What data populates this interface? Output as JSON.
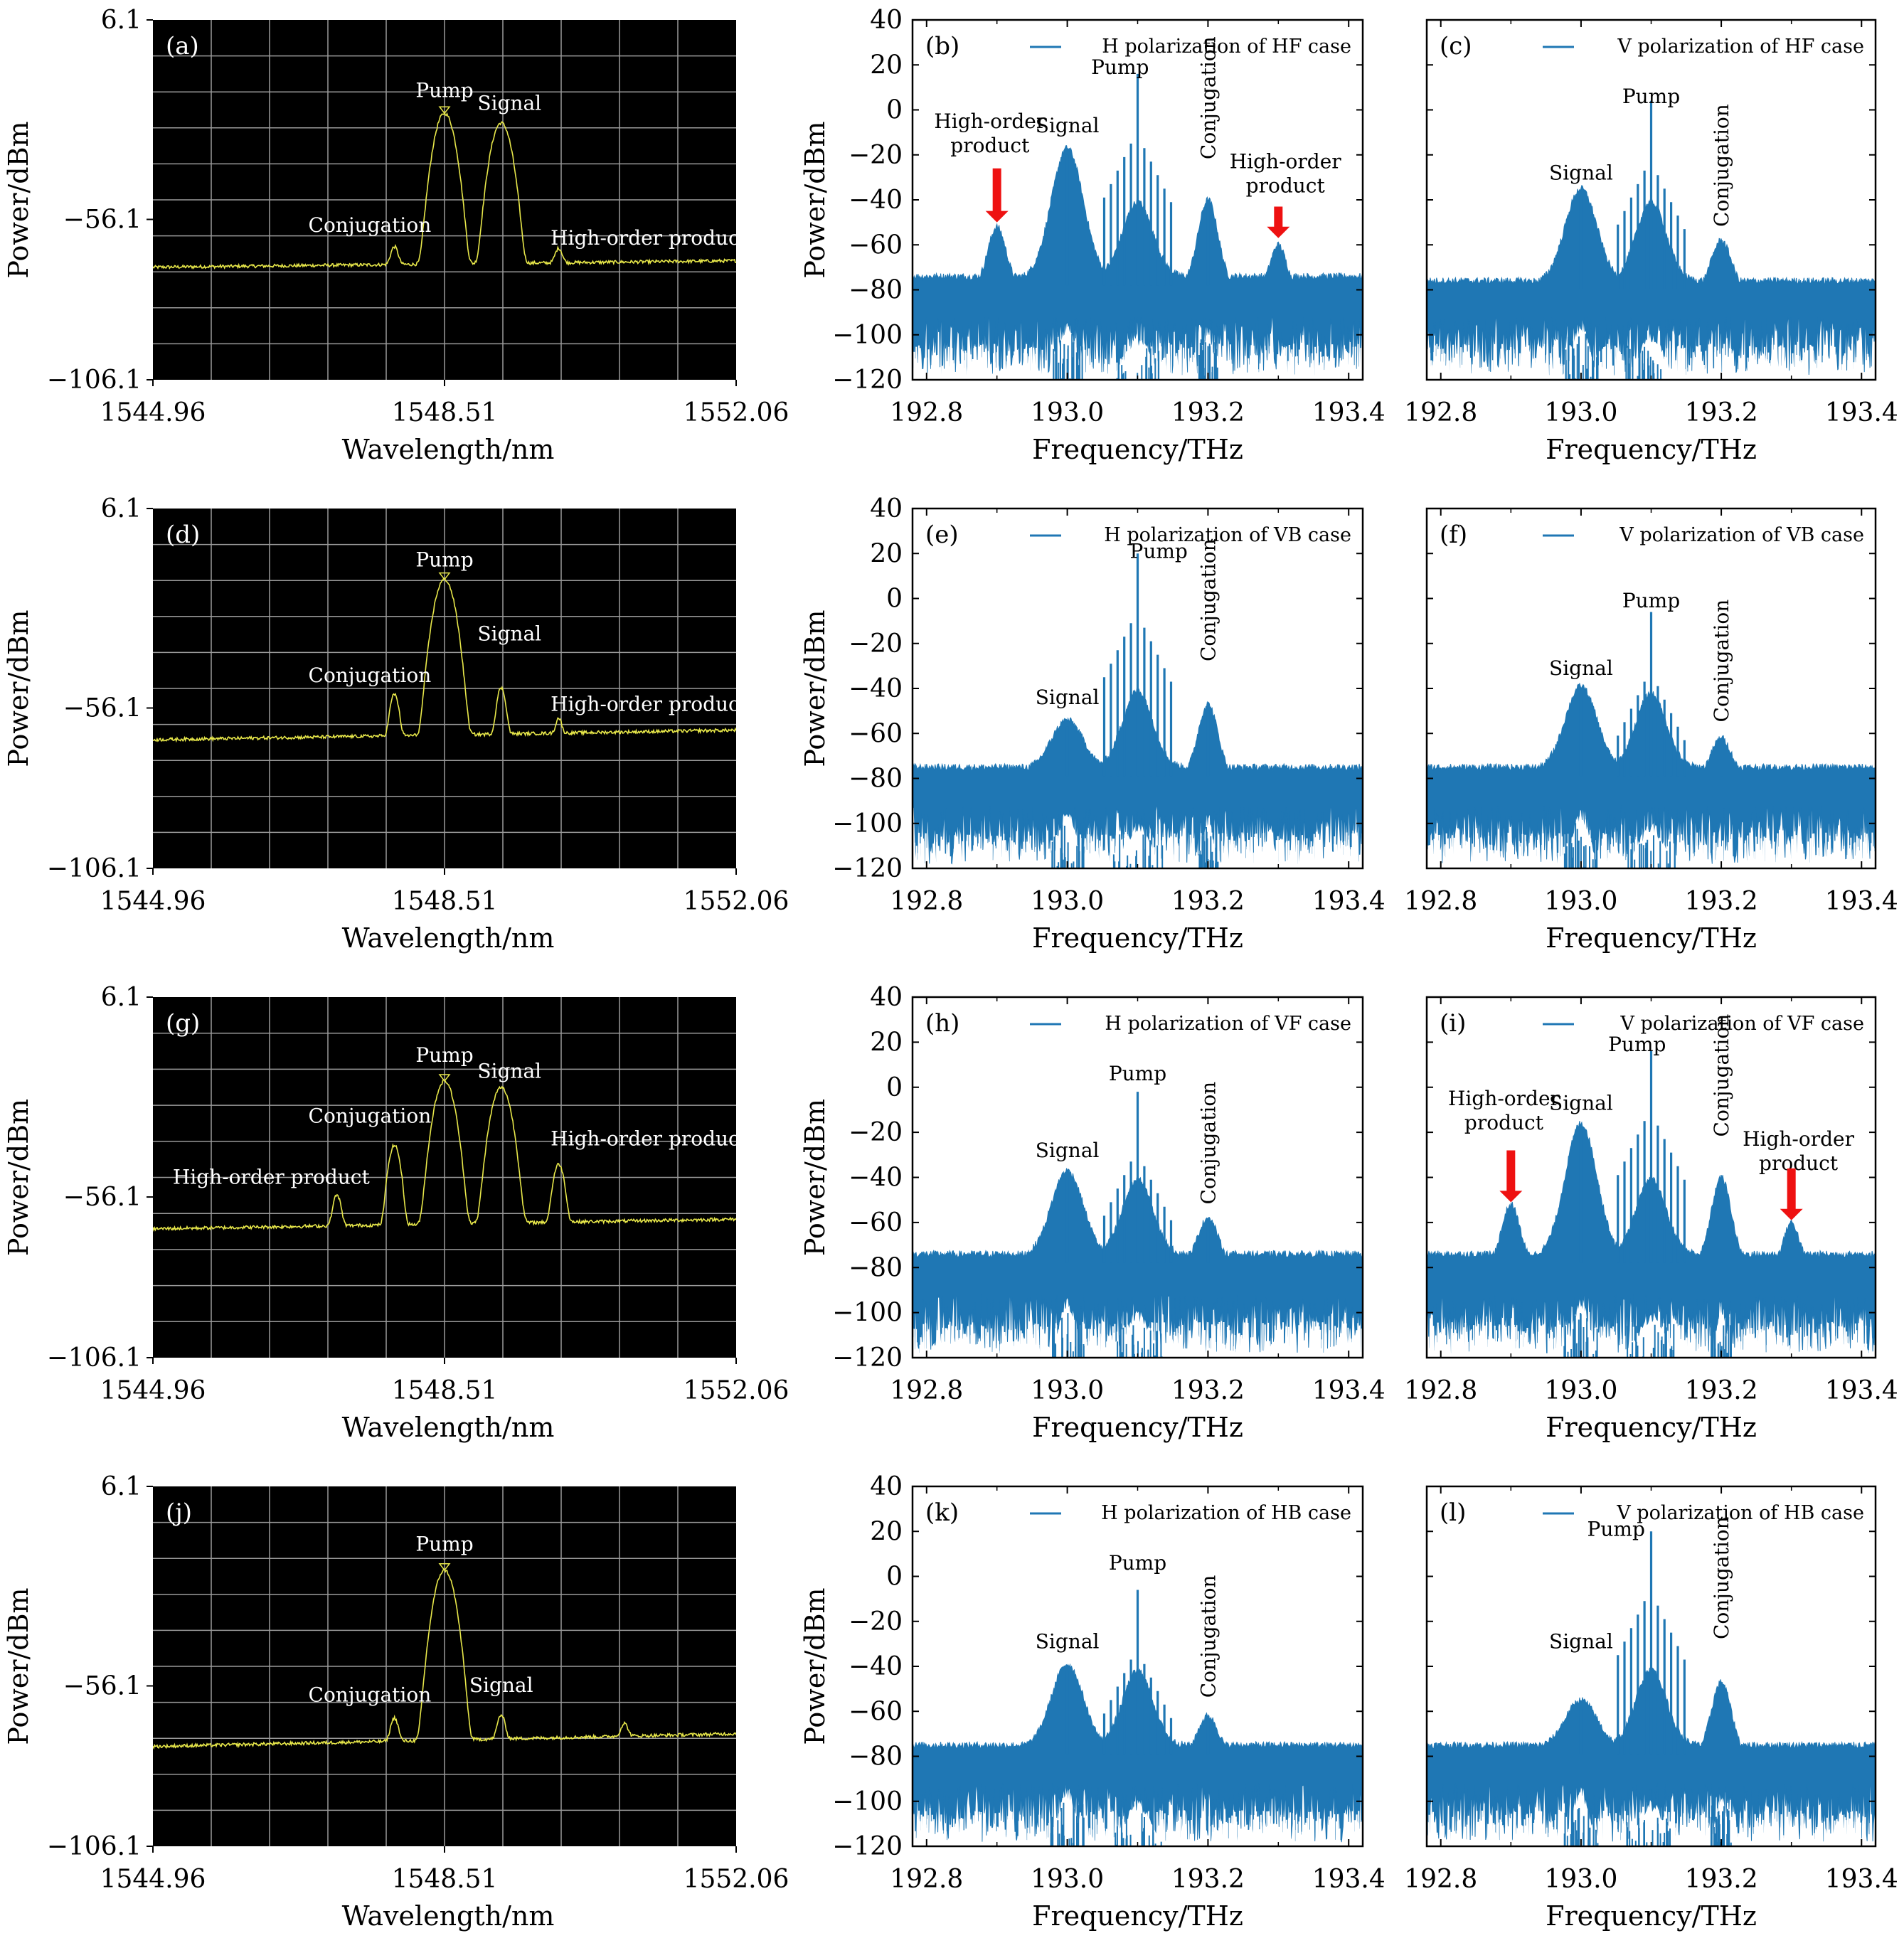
{
  "colors": {
    "spectrum": "#1f77b4",
    "osa_background": "#000000",
    "osa_grid": "#9a9a9a",
    "osa_trace": "#e8e84a",
    "osa_text": "#ffffff",
    "arrow": "#ee1111"
  },
  "chart_data": [
    {
      "id": "a",
      "label": "(a)",
      "type": "line",
      "style": "osa",
      "xlabel": "Wavelength/nm",
      "ylabel": "Power/dBm",
      "xlim": [
        1544.96,
        1552.06
      ],
      "ylim": [
        -106.1,
        6.1
      ],
      "xticks": [
        1544.96,
        1548.51,
        1552.06
      ],
      "xtick_labels": [
        "1544.96",
        "1548.51",
        "1552.06"
      ],
      "yticks": [
        6.1,
        -56.1,
        -106.1
      ],
      "ytick_labels": [
        "6.1",
        "−56.1",
        "−106.1"
      ],
      "baseline": [
        -71,
        -69
      ],
      "peaks": [
        {
          "x": 1547.9,
          "y": -66,
          "w": 0.05
        },
        {
          "x": 1548.51,
          "y": -23,
          "w": 0.09
        },
        {
          "x": 1549.2,
          "y": -26,
          "w": 0.09
        },
        {
          "x": 1549.9,
          "y": -67,
          "w": 0.05
        }
      ],
      "annotations": [
        {
          "text": "Pump",
          "x": 1548.51,
          "y": -18
        },
        {
          "text": "Signal",
          "x": 1549.3,
          "y": -22
        },
        {
          "text": "Conjugation",
          "x": 1547.6,
          "y": -60
        },
        {
          "text": "High-order product",
          "x": 1551.0,
          "y": -64
        }
      ]
    },
    {
      "id": "b",
      "label": "(b)",
      "type": "line",
      "style": "spectrum",
      "legend": "H polarization of HF case",
      "xlabel": "Frequency/THz",
      "ylabel": "Power/dBm",
      "xlim": [
        192.78,
        193.42
      ],
      "ylim": [
        -120,
        40
      ],
      "xticks": [
        192.8,
        193.0,
        193.2,
        193.4
      ],
      "xtick_labels": [
        "192.8",
        "193.0",
        "193.2",
        "193.4"
      ],
      "yticks": [
        40,
        20,
        0,
        -20,
        -40,
        -60,
        -80,
        -100,
        -120
      ],
      "ytick_labels": [
        "40",
        "20",
        "0",
        "−20",
        "−40",
        "−60",
        "−80",
        "−100",
        "−120"
      ],
      "baseline": -78,
      "pump_peak": 16,
      "signal_peak": -20,
      "conjugation_peak": -40,
      "ho_left_peak": -52,
      "ho_right_peak": -60,
      "annotations": [
        {
          "text": "Pump",
          "x": 193.075,
          "y": 16
        },
        {
          "text": "Signal",
          "x": 193.0,
          "y": -10
        },
        {
          "text": "Conjugation",
          "x": 193.2,
          "y": -22,
          "rotate": true
        },
        {
          "text": "High-order\nproduct",
          "x": 192.89,
          "y": -8
        },
        {
          "text": "High-order\nproduct",
          "x": 193.31,
          "y": -26
        }
      ],
      "arrows": [
        {
          "x": 192.9,
          "y_from": -26,
          "y_to": -50
        },
        {
          "x": 193.3,
          "y_from": -43,
          "y_to": -57
        }
      ]
    },
    {
      "id": "c",
      "label": "(c)",
      "type": "line",
      "style": "spectrum",
      "legend": "V polarization of HF case",
      "xlabel": "Frequency/THz",
      "ylabel": "",
      "xlim": [
        192.78,
        193.42
      ],
      "ylim": [
        -120,
        40
      ],
      "xticks": [
        192.8,
        193.0,
        193.2,
        193.4
      ],
      "xtick_labels": [
        "192.8",
        "193.0",
        "193.2",
        "193.4"
      ],
      "yticks": [
        40,
        20,
        0,
        -20,
        -40,
        -60,
        -80,
        -100,
        -120
      ],
      "baseline": -80,
      "pump_peak": 4,
      "signal_peak": -38,
      "conjugation_peak": -58,
      "annotations": [
        {
          "text": "Pump",
          "x": 193.1,
          "y": 3
        },
        {
          "text": "Signal",
          "x": 193.0,
          "y": -31
        },
        {
          "text": "Conjugation",
          "x": 193.2,
          "y": -52,
          "rotate": true
        }
      ]
    },
    {
      "id": "d",
      "label": "(d)",
      "type": "line",
      "style": "osa",
      "xlabel": "Wavelength/nm",
      "ylabel": "Power/dBm",
      "xlim": [
        1544.96,
        1552.06
      ],
      "ylim": [
        -106.1,
        6.1
      ],
      "xticks": [
        1544.96,
        1548.51,
        1552.06
      ],
      "xtick_labels": [
        "1544.96",
        "1548.51",
        "1552.06"
      ],
      "yticks": [
        6.1,
        -56.1,
        -106.1
      ],
      "ytick_labels": [
        "6.1",
        "−56.1",
        "−106.1"
      ],
      "baseline": [
        -66,
        -63
      ],
      "peaks": [
        {
          "x": 1547.9,
          "y": -52,
          "w": 0.05
        },
        {
          "x": 1548.51,
          "y": -16,
          "w": 0.09
        },
        {
          "x": 1549.2,
          "y": -50,
          "w": 0.05
        },
        {
          "x": 1549.9,
          "y": -61,
          "w": 0.04
        }
      ],
      "annotations": [
        {
          "text": "Pump",
          "x": 1548.51,
          "y": -12
        },
        {
          "text": "Signal",
          "x": 1549.3,
          "y": -35
        },
        {
          "text": "Conjugation",
          "x": 1547.6,
          "y": -48
        },
        {
          "text": "High-order product",
          "x": 1551.0,
          "y": -57
        }
      ]
    },
    {
      "id": "e",
      "label": "(e)",
      "type": "line",
      "style": "spectrum",
      "legend": "H polarization of VB case",
      "xlabel": "Frequency/THz",
      "ylabel": "Power/dBm",
      "xlim": [
        192.78,
        193.42
      ],
      "ylim": [
        -120,
        40
      ],
      "xticks": [
        192.8,
        193.0,
        193.2,
        193.4
      ],
      "xtick_labels": [
        "192.8",
        "193.0",
        "193.2",
        "193.4"
      ],
      "yticks": [
        40,
        20,
        0,
        -20,
        -40,
        -60,
        -80,
        -100,
        -120
      ],
      "ytick_labels": [
        "40",
        "20",
        "0",
        "−20",
        "−40",
        "−60",
        "−80",
        "−100",
        "−120"
      ],
      "baseline": -79,
      "pump_peak": 20,
      "signal_peak": -57,
      "conjugation_peak": -47,
      "annotations": [
        {
          "text": "Pump",
          "x": 193.13,
          "y": 18
        },
        {
          "text": "Signal",
          "x": 193.0,
          "y": -47
        },
        {
          "text": "Conjugation",
          "x": 193.2,
          "y": -28,
          "rotate": true
        }
      ]
    },
    {
      "id": "f",
      "label": "(f)",
      "type": "line",
      "style": "spectrum",
      "legend": "V polarization of VB case",
      "xlabel": "Frequency/THz",
      "ylabel": "",
      "xlim": [
        192.78,
        193.42
      ],
      "ylim": [
        -120,
        40
      ],
      "xticks": [
        192.8,
        193.0,
        193.2,
        193.4
      ],
      "xtick_labels": [
        "192.8",
        "193.0",
        "193.2",
        "193.4"
      ],
      "yticks": [
        40,
        20,
        0,
        -20,
        -40,
        -60,
        -80,
        -100,
        -120
      ],
      "baseline": -79,
      "pump_peak": -6,
      "signal_peak": -42,
      "conjugation_peak": -62,
      "annotations": [
        {
          "text": "Pump",
          "x": 193.1,
          "y": -4
        },
        {
          "text": "Signal",
          "x": 193.0,
          "y": -34
        },
        {
          "text": "Conjugation",
          "x": 193.2,
          "y": -55,
          "rotate": true
        }
      ]
    },
    {
      "id": "g",
      "label": "(g)",
      "type": "line",
      "style": "osa",
      "xlabel": "Wavelength/nm",
      "ylabel": "Power/dBm",
      "xlim": [
        1544.96,
        1552.06
      ],
      "ylim": [
        -106.1,
        6.1
      ],
      "xticks": [
        1544.96,
        1548.51,
        1552.06
      ],
      "xtick_labels": [
        "1544.96",
        "1548.51",
        "1552.06"
      ],
      "yticks": [
        6.1,
        -56.1,
        -106.1
      ],
      "ytick_labels": [
        "6.1",
        "−56.1",
        "−106.1"
      ],
      "baseline": [
        -66,
        -63
      ],
      "peaks": [
        {
          "x": 1547.2,
          "y": -56,
          "w": 0.05
        },
        {
          "x": 1547.9,
          "y": -40,
          "w": 0.06
        },
        {
          "x": 1548.51,
          "y": -20,
          "w": 0.09
        },
        {
          "x": 1549.2,
          "y": -22,
          "w": 0.09
        },
        {
          "x": 1549.9,
          "y": -46,
          "w": 0.06
        }
      ],
      "annotations": [
        {
          "text": "Pump",
          "x": 1548.51,
          "y": -14
        },
        {
          "text": "Signal",
          "x": 1549.3,
          "y": -19
        },
        {
          "text": "Conjugation",
          "x": 1547.6,
          "y": -33
        },
        {
          "text": "High-order product",
          "x": 1551.0,
          "y": -40
        },
        {
          "text": "High-order product",
          "x": 1546.4,
          "y": -52
        }
      ]
    },
    {
      "id": "h",
      "label": "(h)",
      "type": "line",
      "style": "spectrum",
      "legend": "H polarization of VF case",
      "xlabel": "Frequency/THz",
      "ylabel": "Power/dBm",
      "xlim": [
        192.78,
        193.42
      ],
      "ylim": [
        -120,
        40
      ],
      "xticks": [
        192.8,
        193.0,
        193.2,
        193.4
      ],
      "xtick_labels": [
        "192.8",
        "193.0",
        "193.2",
        "193.4"
      ],
      "yticks": [
        40,
        20,
        0,
        -20,
        -40,
        -60,
        -80,
        -100,
        -120
      ],
      "ytick_labels": [
        "40",
        "20",
        "0",
        "−20",
        "−40",
        "−60",
        "−80",
        "−100",
        "−120"
      ],
      "baseline": -78,
      "pump_peak": -2,
      "signal_peak": -40,
      "conjugation_peak": -58,
      "annotations": [
        {
          "text": "Pump",
          "x": 193.1,
          "y": 3
        },
        {
          "text": "Signal",
          "x": 193.0,
          "y": -31
        },
        {
          "text": "Conjugation",
          "x": 193.2,
          "y": -52,
          "rotate": true
        }
      ]
    },
    {
      "id": "i",
      "label": "(i)",
      "type": "line",
      "style": "spectrum",
      "legend": "V polarization of VF case",
      "xlabel": "Frequency/THz",
      "ylabel": "",
      "xlim": [
        192.78,
        193.42
      ],
      "ylim": [
        -120,
        40
      ],
      "xticks": [
        192.8,
        193.0,
        193.2,
        193.4
      ],
      "xtick_labels": [
        "192.8",
        "193.0",
        "193.2",
        "193.4"
      ],
      "yticks": [
        40,
        20,
        0,
        -20,
        -40,
        -60,
        -80,
        -100,
        -120
      ],
      "baseline": -78,
      "pump_peak": 16,
      "signal_peak": -19,
      "conjugation_peak": -40,
      "ho_left_peak": -52,
      "ho_right_peak": -60,
      "annotations": [
        {
          "text": "Pump",
          "x": 193.08,
          "y": 16
        },
        {
          "text": "Signal",
          "x": 193.0,
          "y": -10
        },
        {
          "text": "Conjugation",
          "x": 193.2,
          "y": -22,
          "rotate": true
        },
        {
          "text": "High-order\nproduct",
          "x": 192.89,
          "y": -8
        },
        {
          "text": "High-order\nproduct",
          "x": 193.31,
          "y": -26
        }
      ],
      "arrows": [
        {
          "x": 192.9,
          "y_from": -28,
          "y_to": -51
        },
        {
          "x": 193.3,
          "y_from": -36,
          "y_to": -59
        }
      ]
    },
    {
      "id": "j",
      "label": "(j)",
      "type": "line",
      "style": "osa",
      "xlabel": "Wavelength/nm",
      "ylabel": "Power/dBm",
      "xlim": [
        1544.96,
        1552.06
      ],
      "ylim": [
        -106.1,
        6.1
      ],
      "xticks": [
        1544.96,
        1548.51,
        1552.06
      ],
      "xtick_labels": [
        "1544.96",
        "1548.51",
        "1552.06"
      ],
      "yticks": [
        6.1,
        -56.1,
        -106.1
      ],
      "ytick_labels": [
        "6.1",
        "−56.1",
        "−106.1"
      ],
      "baseline": [
        -75,
        -71
      ],
      "peaks": [
        {
          "x": 1547.9,
          "y": -67,
          "w": 0.05
        },
        {
          "x": 1548.51,
          "y": -20,
          "w": 0.09
        },
        {
          "x": 1549.2,
          "y": -66,
          "w": 0.05
        },
        {
          "x": 1550.7,
          "y": -70,
          "w": 0.05
        }
      ],
      "annotations": [
        {
          "text": "Pump",
          "x": 1548.51,
          "y": -14
        },
        {
          "text": "Signal",
          "x": 1549.2,
          "y": -58
        },
        {
          "text": "Conjugation",
          "x": 1547.6,
          "y": -61
        }
      ]
    },
    {
      "id": "k",
      "label": "(k)",
      "type": "line",
      "style": "spectrum",
      "legend": "H polarization of HB case",
      "xlabel": "Frequency/THz",
      "ylabel": "Power/dBm",
      "xlim": [
        192.78,
        193.42
      ],
      "ylim": [
        -120,
        40
      ],
      "xticks": [
        192.8,
        193.0,
        193.2,
        193.4
      ],
      "xtick_labels": [
        "192.8",
        "193.0",
        "193.2",
        "193.4"
      ],
      "yticks": [
        40,
        20,
        0,
        -20,
        -40,
        -60,
        -80,
        -100,
        -120
      ],
      "ytick_labels": [
        "40",
        "20",
        "0",
        "−20",
        "−40",
        "−60",
        "−80",
        "−100",
        "−120"
      ],
      "baseline": -79,
      "pump_peak": -6,
      "signal_peak": -42,
      "conjugation_peak": -62,
      "annotations": [
        {
          "text": "Pump",
          "x": 193.1,
          "y": 3
        },
        {
          "text": "Signal",
          "x": 193.0,
          "y": -32
        },
        {
          "text": "Conjugation",
          "x": 193.2,
          "y": -54,
          "rotate": true
        }
      ]
    },
    {
      "id": "l",
      "label": "(l)",
      "type": "line",
      "style": "spectrum",
      "legend": "V polarization of HB case",
      "xlabel": "Frequency/THz",
      "ylabel": "",
      "xlim": [
        192.78,
        193.42
      ],
      "ylim": [
        -120,
        40
      ],
      "xticks": [
        192.8,
        193.0,
        193.2,
        193.4
      ],
      "xtick_labels": [
        "192.8",
        "193.0",
        "193.2",
        "193.4"
      ],
      "yticks": [
        40,
        20,
        0,
        -20,
        -40,
        -60,
        -80,
        -100,
        -120
      ],
      "baseline": -79,
      "pump_peak": 20,
      "signal_peak": -58,
      "conjugation_peak": -47,
      "annotations": [
        {
          "text": "Pump",
          "x": 193.05,
          "y": 18
        },
        {
          "text": "Signal",
          "x": 193.0,
          "y": -32
        },
        {
          "text": "Conjugation",
          "x": 193.2,
          "y": -28,
          "rotate": true
        }
      ]
    }
  ]
}
